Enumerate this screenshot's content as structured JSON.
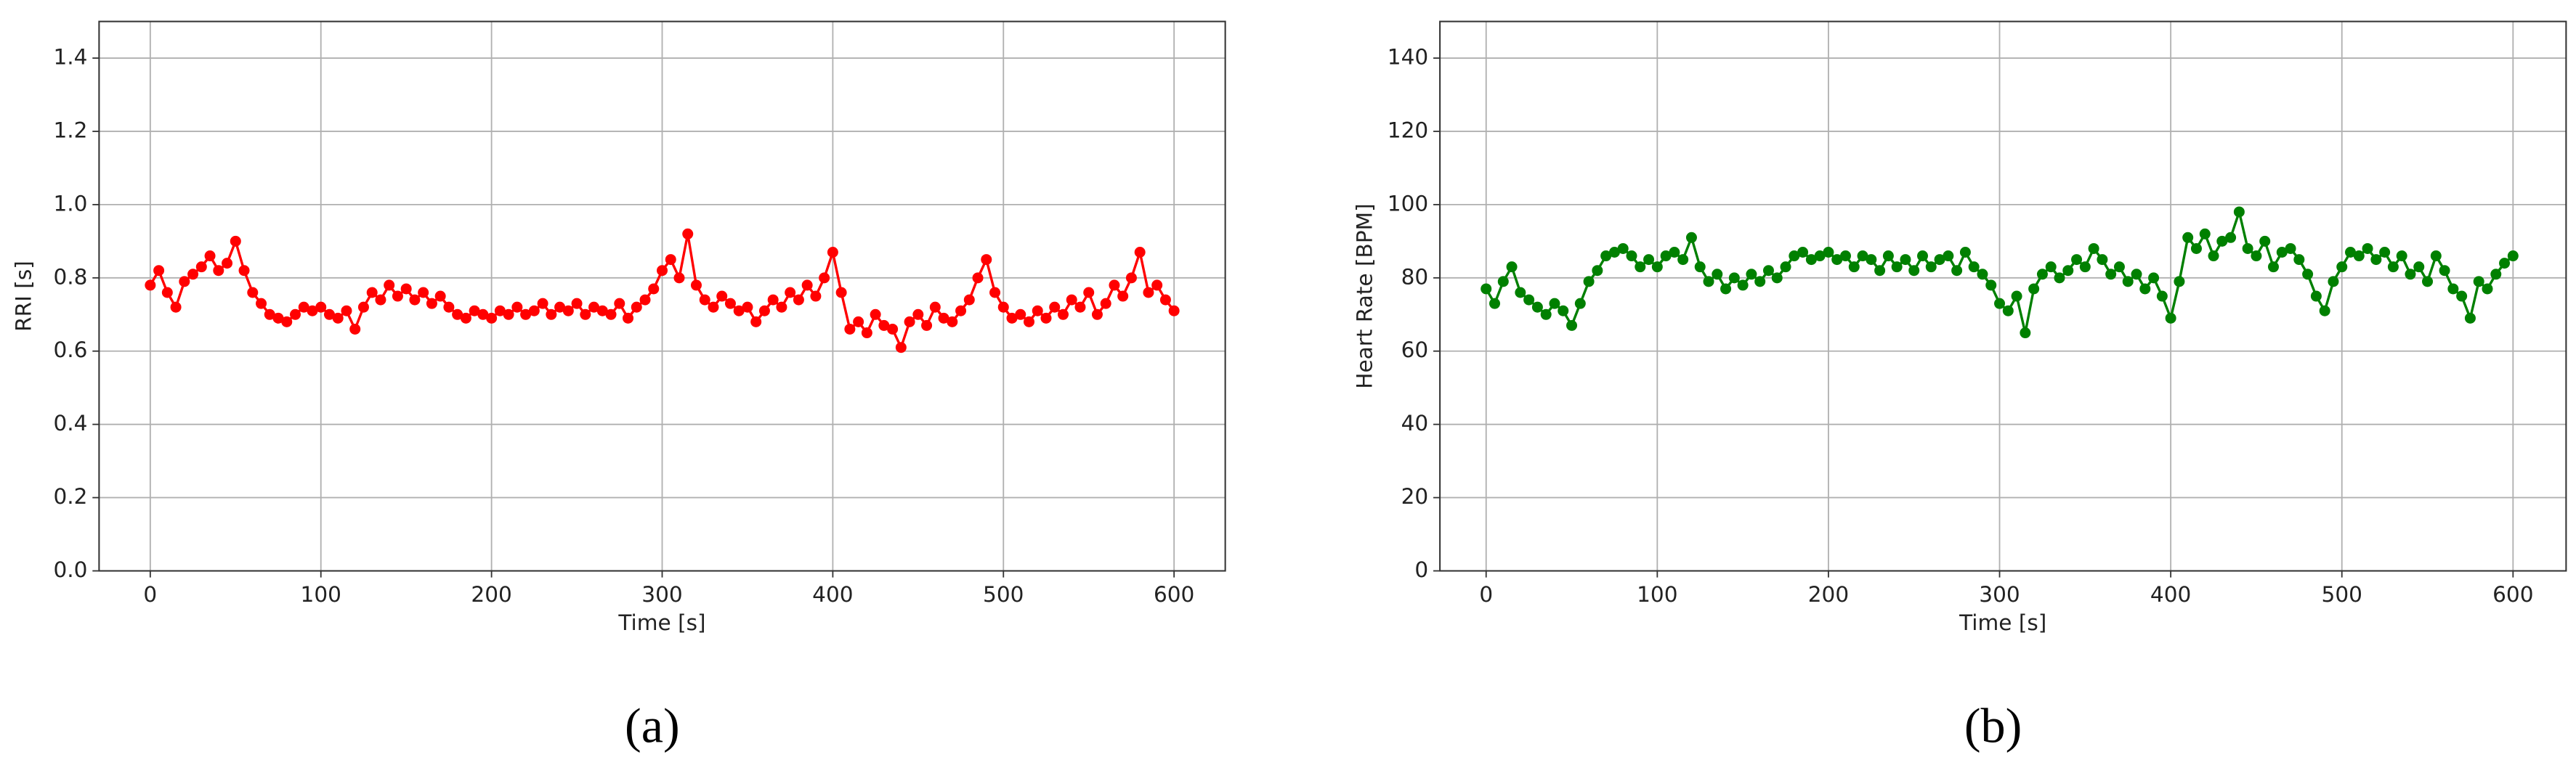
{
  "chart_data": [
    {
      "type": "line",
      "xlabel": "Time [s]",
      "ylabel": "RRI [s]",
      "panel_label": "(a)",
      "xlim": [
        -30,
        630
      ],
      "ylim": [
        0,
        1.5
      ],
      "grid": true,
      "xticks": [
        0,
        100,
        200,
        300,
        400,
        500,
        600
      ],
      "yticks": [
        {
          "value": 0,
          "label": "0.0"
        },
        0.2,
        0.4,
        0.6,
        0.8,
        {
          "value": 1,
          "label": "1.0"
        },
        1.2,
        1.4
      ],
      "x": [
        0,
        5,
        10,
        15,
        20,
        25,
        30,
        35,
        40,
        45,
        50,
        55,
        60,
        65,
        70,
        75,
        80,
        85,
        90,
        95,
        100,
        105,
        110,
        115,
        120,
        125,
        130,
        135,
        140,
        145,
        150,
        155,
        160,
        165,
        170,
        175,
        180,
        185,
        190,
        195,
        200,
        205,
        210,
        215,
        220,
        225,
        230,
        235,
        240,
        245,
        250,
        255,
        260,
        265,
        270,
        275,
        280,
        285,
        290,
        295,
        300,
        305,
        310,
        315,
        320,
        325,
        330,
        335,
        340,
        345,
        350,
        355,
        360,
        365,
        370,
        375,
        380,
        385,
        390,
        395,
        400,
        405,
        410,
        415,
        420,
        425,
        430,
        435,
        440,
        445,
        450,
        455,
        460,
        465,
        470,
        475,
        480,
        485,
        490,
        495,
        500,
        505,
        510,
        515,
        520,
        525,
        530,
        535,
        540,
        545,
        550,
        555,
        560,
        565,
        570,
        575,
        580,
        585,
        590,
        595,
        600
      ],
      "series": [
        {
          "color": "#ff0000",
          "values": [
            0.78,
            0.82,
            0.76,
            0.72,
            0.79,
            0.81,
            0.83,
            0.86,
            0.82,
            0.84,
            0.9,
            0.82,
            0.76,
            0.73,
            0.7,
            0.69,
            0.68,
            0.7,
            0.72,
            0.71,
            0.72,
            0.7,
            0.69,
            0.71,
            0.66,
            0.72,
            0.76,
            0.74,
            0.78,
            0.75,
            0.77,
            0.74,
            0.76,
            0.73,
            0.75,
            0.72,
            0.7,
            0.69,
            0.71,
            0.7,
            0.69,
            0.71,
            0.7,
            0.72,
            0.7,
            0.71,
            0.73,
            0.7,
            0.72,
            0.71,
            0.73,
            0.7,
            0.72,
            0.71,
            0.7,
            0.73,
            0.69,
            0.72,
            0.74,
            0.77,
            0.82,
            0.85,
            0.8,
            0.92,
            0.78,
            0.74,
            0.72,
            0.75,
            0.73,
            0.71,
            0.72,
            0.68,
            0.71,
            0.74,
            0.72,
            0.76,
            0.74,
            0.78,
            0.75,
            0.8,
            0.87,
            0.76,
            0.66,
            0.68,
            0.65,
            0.7,
            0.67,
            0.66,
            0.61,
            0.68,
            0.7,
            0.67,
            0.72,
            0.69,
            0.68,
            0.71,
            0.74,
            0.8,
            0.85,
            0.76,
            0.72,
            0.69,
            0.7,
            0.68,
            0.71,
            0.69,
            0.72,
            0.7,
            0.74,
            0.72,
            0.76,
            0.7,
            0.73,
            0.78,
            0.75,
            0.8,
            0.87,
            0.76,
            0.78,
            0.74,
            0.71
          ]
        }
      ]
    },
    {
      "type": "line",
      "xlabel": "Time [s]",
      "ylabel": "Heart Rate [BPM]",
      "panel_label": "(b)",
      "xlim": [
        -27,
        631
      ],
      "ylim": [
        0,
        150
      ],
      "grid": true,
      "xticks": [
        0,
        100,
        200,
        300,
        400,
        500,
        600
      ],
      "yticks": [
        0,
        20,
        40,
        60,
        80,
        100,
        120,
        140
      ],
      "x": [
        0,
        5,
        10,
        15,
        20,
        25,
        30,
        35,
        40,
        45,
        50,
        55,
        60,
        65,
        70,
        75,
        80,
        85,
        90,
        95,
        100,
        105,
        110,
        115,
        120,
        125,
        130,
        135,
        140,
        145,
        150,
        155,
        160,
        165,
        170,
        175,
        180,
        185,
        190,
        195,
        200,
        205,
        210,
        215,
        220,
        225,
        230,
        235,
        240,
        245,
        250,
        255,
        260,
        265,
        270,
        275,
        280,
        285,
        290,
        295,
        300,
        305,
        310,
        315,
        320,
        325,
        330,
        335,
        340,
        345,
        350,
        355,
        360,
        365,
        370,
        375,
        380,
        385,
        390,
        395,
        400,
        405,
        410,
        415,
        420,
        425,
        430,
        435,
        440,
        445,
        450,
        455,
        460,
        465,
        470,
        475,
        480,
        485,
        490,
        495,
        500,
        505,
        510,
        515,
        520,
        525,
        530,
        535,
        540,
        545,
        550,
        555,
        560,
        565,
        570,
        575,
        580,
        585,
        590,
        595,
        600
      ],
      "series": [
        {
          "color": "#008000",
          "values": [
            77,
            73,
            79,
            83,
            76,
            74,
            72,
            70,
            73,
            71,
            67,
            73,
            79,
            82,
            86,
            87,
            88,
            86,
            83,
            85,
            83,
            86,
            87,
            85,
            91,
            83,
            79,
            81,
            77,
            80,
            78,
            81,
            79,
            82,
            80,
            83,
            86,
            87,
            85,
            86,
            87,
            85,
            86,
            83,
            86,
            85,
            82,
            86,
            83,
            85,
            82,
            86,
            83,
            85,
            86,
            82,
            87,
            83,
            81,
            78,
            73,
            71,
            75,
            65,
            77,
            81,
            83,
            80,
            82,
            85,
            83,
            88,
            85,
            81,
            83,
            79,
            81,
            77,
            80,
            75,
            69,
            79,
            91,
            88,
            92,
            86,
            90,
            91,
            98,
            88,
            86,
            90,
            83,
            87,
            88,
            85,
            81,
            75,
            71,
            79,
            83,
            87,
            86,
            88,
            85,
            87,
            83,
            86,
            81,
            83,
            79,
            86,
            82,
            77,
            75,
            69,
            79,
            77,
            81,
            84,
            86
          ]
        }
      ]
    }
  ]
}
